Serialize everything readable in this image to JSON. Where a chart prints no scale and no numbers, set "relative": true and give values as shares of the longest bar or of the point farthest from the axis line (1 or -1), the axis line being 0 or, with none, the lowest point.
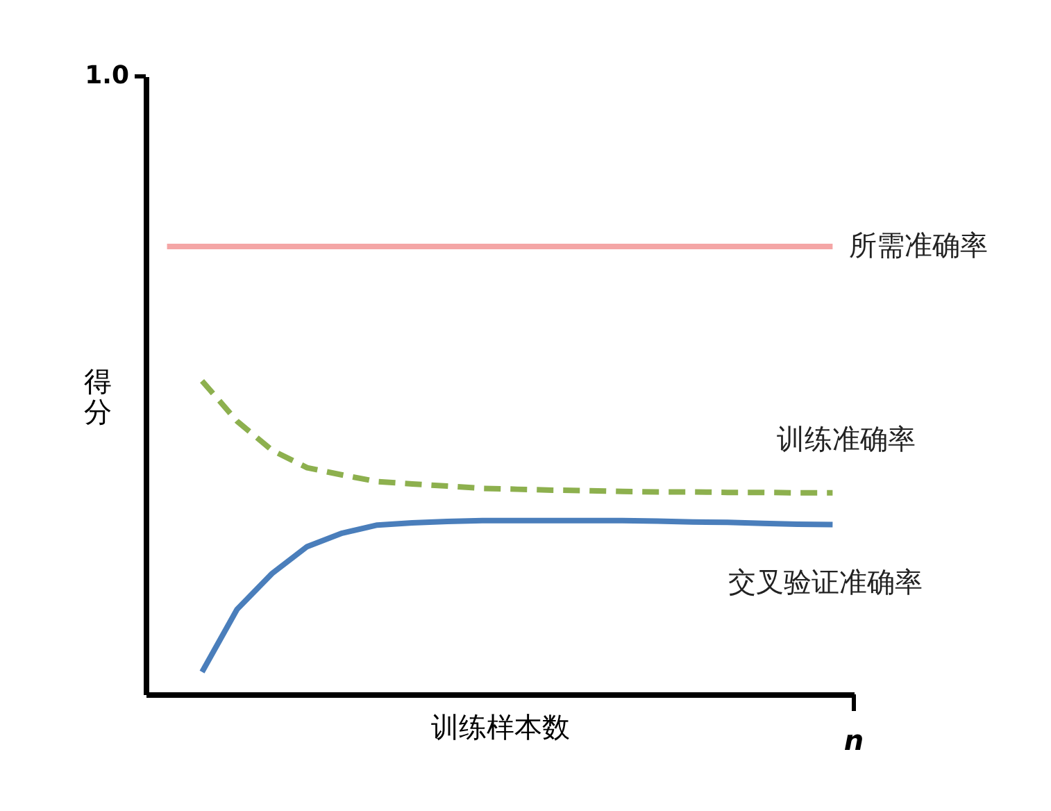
{
  "chart_data": {
    "type": "line",
    "relative": true,
    "xlabel": "训练样本数",
    "ylabel": "得分",
    "marker": "none",
    "annotations": [
      "1.0",
      "n"
    ],
    "categories": [
      null,
      null,
      null,
      null,
      null,
      null,
      null,
      null,
      null,
      null,
      null,
      null,
      null,
      null,
      null,
      null,
      null,
      null,
      null,
      null
    ],
    "series": [
      {
        "name": "所需准确率",
        "color": "#f4a6a6",
        "line_style": "solid",
        "values": [
          1,
          1,
          1,
          1,
          1,
          1,
          1,
          1,
          1,
          1,
          1,
          1,
          1,
          1,
          1,
          1,
          1,
          1,
          1,
          1
        ]
      },
      {
        "name": "训练准确率",
        "color": "#8db04e",
        "line_style": "dashed",
        "values": [
          null,
          0.7,
          0.61,
          0.545,
          0.506,
          0.49,
          0.475,
          0.47,
          0.465,
          0.46,
          0.458,
          0.456,
          0.455,
          0.453,
          0.452,
          0.452,
          0.451,
          0.451,
          0.45,
          0.45
        ]
      },
      {
        "name": "交叉验证准确率",
        "color": "#4a7ebb",
        "line_style": "solid",
        "values": [
          null,
          0.05,
          0.19,
          0.27,
          0.33,
          0.36,
          0.378,
          0.383,
          0.386,
          0.388,
          0.388,
          0.388,
          0.388,
          0.388,
          0.387,
          0.385,
          0.384,
          0.382,
          0.38,
          0.379
        ]
      }
    ]
  }
}
